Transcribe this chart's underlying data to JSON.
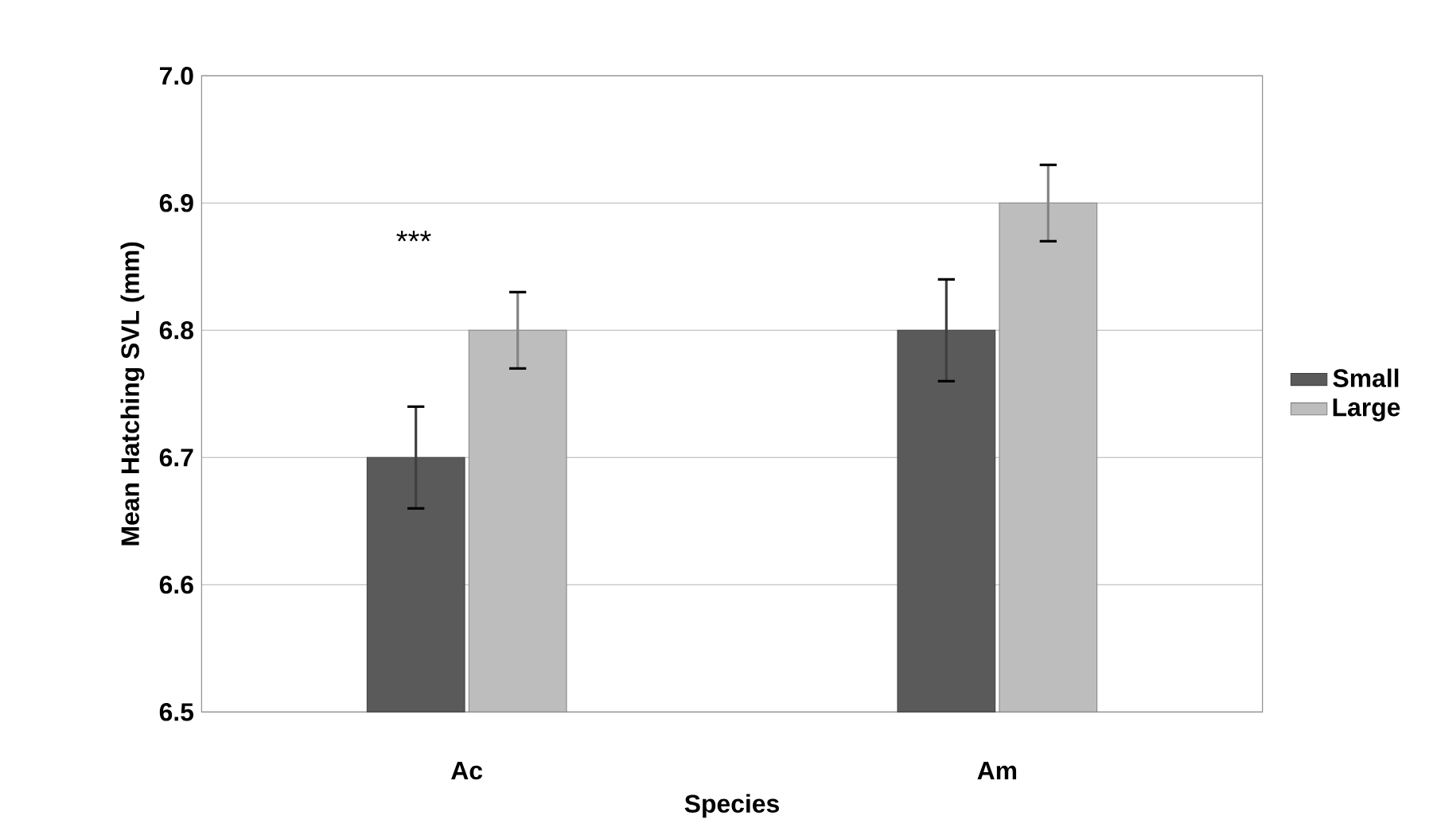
{
  "chart_data": {
    "type": "bar",
    "xlabel": "Species",
    "ylabel": "Mean Hatching SVL (mm)",
    "categories": [
      "Ac",
      "Am"
    ],
    "series": [
      {
        "name": "Small",
        "color": "#5a5a5a",
        "values": [
          6.7,
          6.8
        ],
        "errors": [
          0.04,
          0.04
        ]
      },
      {
        "name": "Large",
        "color": "#bdbdbd",
        "values": [
          6.8,
          6.9
        ],
        "errors": [
          0.03,
          0.03
        ]
      }
    ],
    "ylim": [
      6.5,
      7.0
    ],
    "yticks": [
      {
        "value": 6.5,
        "label": "6.5"
      },
      {
        "value": 6.6,
        "label": "6.6"
      },
      {
        "value": 6.7,
        "label": "6.7"
      },
      {
        "value": 6.8,
        "label": "6.8"
      },
      {
        "value": 6.9,
        "label": "6.9"
      },
      {
        "value": 7.0,
        "label": "7.0"
      }
    ],
    "grid": "y",
    "legend": "right",
    "annotations": [
      "***"
    ]
  }
}
